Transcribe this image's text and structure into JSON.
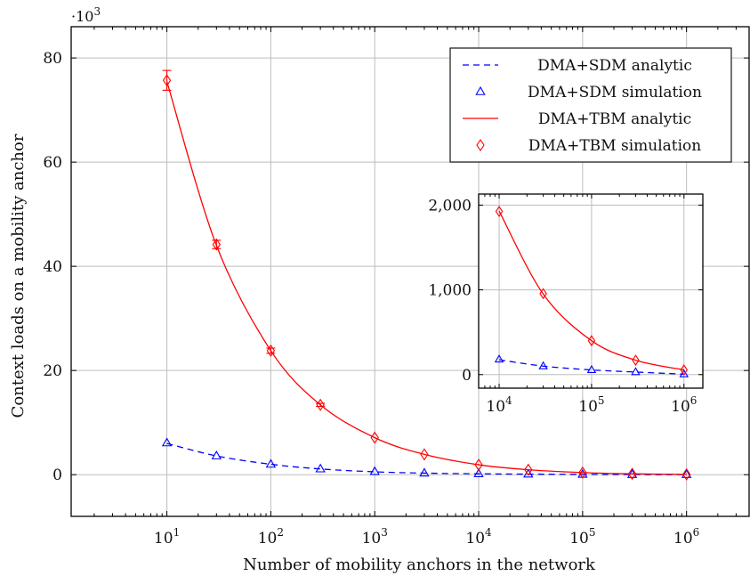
{
  "chart_data": [
    {
      "type": "line",
      "xscale": "log",
      "x_tick_labels": [
        "10^1",
        "10^2",
        "10^3",
        "10^4",
        "10^5",
        "10^6"
      ],
      "y_ticks": [
        0,
        20,
        40,
        60,
        80
      ],
      "y_multiplier": "·10^3",
      "xlabel": "Number of mobility anchors in the network",
      "ylabel": "Context loads on a mobility anchor",
      "xlim": [
        1.2,
        4000000
      ],
      "ylim": [
        -8,
        86
      ],
      "grid": true,
      "legend_position": "top-right",
      "series": [
        {
          "name": "DMA+SDM analytic",
          "style": "dashed",
          "color": "#0000ff",
          "x": [
            10,
            30,
            100,
            300,
            1000,
            3000,
            10000,
            30000,
            100000,
            300000,
            1000000
          ],
          "y": [
            6.0,
            3.6,
            2.0,
            1.1,
            0.55,
            0.3,
            0.17,
            0.1,
            0.06,
            0.03,
            0.01
          ]
        },
        {
          "name": "DMA+SDM simulation",
          "marker": "triangle",
          "color": "#0000ff",
          "x": [
            10,
            30,
            100,
            300,
            1000,
            3000,
            10000,
            30000,
            100000,
            300000,
            1000000
          ],
          "y": [
            6.1,
            3.6,
            2.0,
            1.1,
            0.6,
            0.3,
            0.18,
            0.1,
            0.06,
            0.03,
            0.01
          ]
        },
        {
          "name": "DMA+TBM analytic",
          "style": "solid",
          "color": "#ff0000",
          "x": [
            10,
            30,
            100,
            300,
            1000,
            3000,
            10000,
            30000,
            100000,
            300000,
            1000000
          ],
          "y": [
            75.5,
            44.0,
            23.8,
            13.4,
            7.1,
            3.9,
            1.9,
            0.95,
            0.4,
            0.17,
            0.06
          ]
        },
        {
          "name": "DMA+TBM simulation",
          "marker": "diamond",
          "color": "#ff0000",
          "x": [
            10,
            30,
            100,
            300,
            1000,
            3000,
            10000,
            30000,
            100000,
            300000,
            1000000
          ],
          "y": [
            75.7,
            44.2,
            23.8,
            13.4,
            7.1,
            3.9,
            1.9,
            0.95,
            0.4,
            0.17,
            0.06
          ],
          "error": [
            1.9,
            0.8,
            0.5,
            0.3,
            0.2,
            0.1,
            0.05,
            0.03,
            0.02,
            0.01,
            0.01
          ]
        }
      ]
    },
    {
      "type": "line",
      "inset": true,
      "xscale": "log",
      "x_tick_labels": [
        "10^4",
        "10^5",
        "10^6"
      ],
      "y_ticks": [
        0,
        1000,
        2000
      ],
      "y_tick_labels": [
        "0",
        "1,000",
        "2,000"
      ],
      "xlim": [
        6000,
        1600000
      ],
      "ylim": [
        -160,
        2130
      ],
      "grid": true,
      "series": [
        {
          "name": "DMA+SDM analytic",
          "style": "dashed",
          "color": "#0000ff",
          "x": [
            10000,
            30000,
            100000,
            300000,
            1000000
          ],
          "y": [
            175,
            100,
            55,
            30,
            5
          ]
        },
        {
          "name": "DMA+SDM simulation",
          "marker": "triangle",
          "color": "#0000ff",
          "x": [
            10000,
            30000,
            100000,
            300000,
            1000000
          ],
          "y": [
            180,
            100,
            55,
            30,
            5
          ]
        },
        {
          "name": "DMA+TBM analytic",
          "style": "solid",
          "color": "#ff0000",
          "x": [
            10000,
            30000,
            100000,
            300000,
            1000000
          ],
          "y": [
            1930,
            950,
            400,
            170,
            55
          ]
        },
        {
          "name": "DMA+TBM simulation",
          "marker": "diamond",
          "color": "#ff0000",
          "x": [
            10000,
            30000,
            100000,
            300000,
            1000000
          ],
          "y": [
            1925,
            955,
            400,
            170,
            55
          ]
        }
      ]
    }
  ]
}
